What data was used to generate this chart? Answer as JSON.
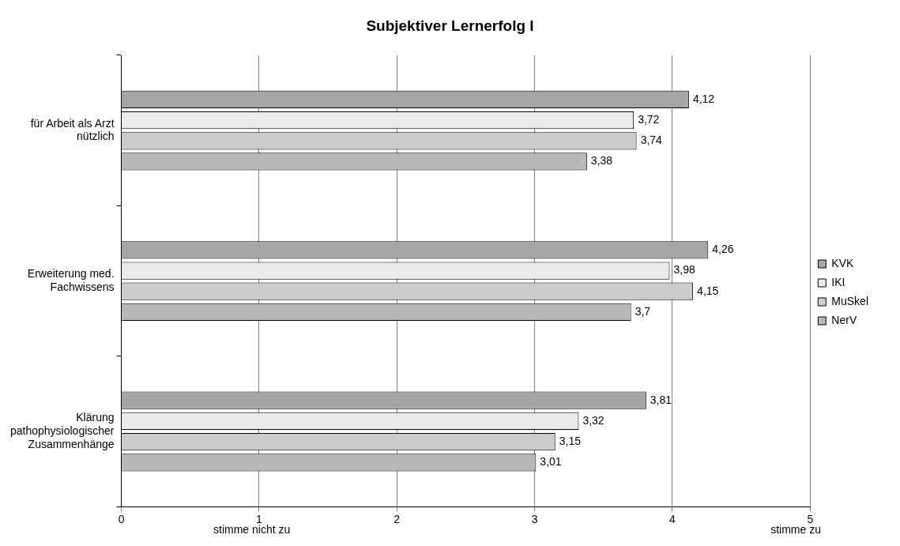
{
  "chart_data": {
    "type": "bar",
    "orientation": "horizontal",
    "title": "Subjektiver Lernerfolg I",
    "categories": [
      "für Arbeit als Arzt nützlich",
      "Erweiterung med. Fachwissens",
      "Klärung pathophysiologischer Zusammenhänge"
    ],
    "series": [
      {
        "name": "KVK",
        "color": "#a6a6a6",
        "values": [
          4.12,
          4.26,
          3.81
        ],
        "value_labels": [
          "4,12",
          "4,26",
          "3,81"
        ]
      },
      {
        "name": "IKI",
        "color": "#ebebeb",
        "values": [
          3.72,
          3.98,
          3.32
        ],
        "value_labels": [
          "3,72",
          "3,98",
          "3,32"
        ]
      },
      {
        "name": "MuSkel",
        "color": "#cccccc",
        "values": [
          3.74,
          4.15,
          3.15
        ],
        "value_labels": [
          "3,74",
          "4,15",
          "3,15"
        ]
      },
      {
        "name": "NerV",
        "color": "#b8b8b8",
        "values": [
          3.38,
          3.7,
          3.01
        ],
        "value_labels": [
          "3,38",
          "3,7",
          "3,01"
        ]
      }
    ],
    "xlim": [
      0,
      5
    ],
    "xticks": [
      0,
      1,
      2,
      3,
      4,
      5
    ],
    "grid": "x",
    "legend": "right",
    "annotations": [
      "stimme nicht zu",
      "stimme zu"
    ]
  }
}
